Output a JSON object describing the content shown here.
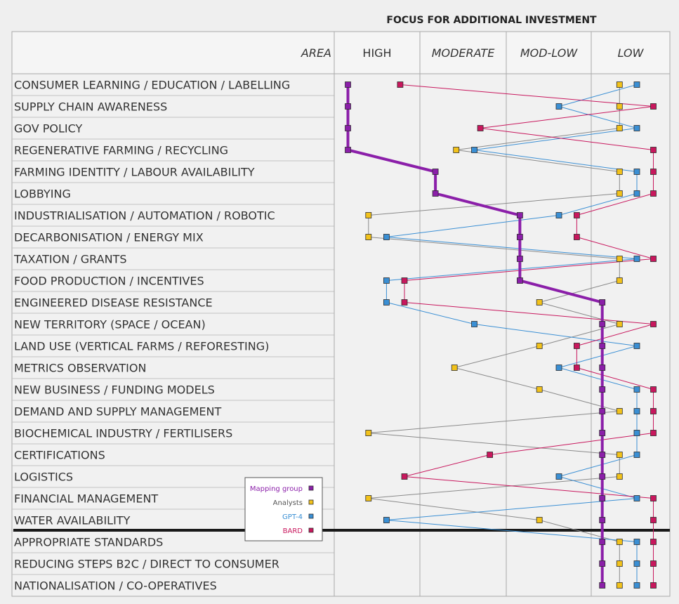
{
  "chart_data": {
    "type": "dot-plot",
    "title": "FOCUS FOR ADDITIONAL INVESTMENT",
    "area_header": "AREA",
    "x_levels": [
      "HIGH",
      "MODERATE",
      "MOD-LOW",
      "LOW"
    ],
    "x_levels_italic": [
      false,
      true,
      true,
      true
    ],
    "x_range": [
      0,
      4
    ],
    "separator_after_index": 20,
    "categories": [
      "CONSUMER LEARNING / EDUCATION / LABELLING",
      "SUPPLY CHAIN AWARENESS",
      "GOV POLICY",
      "REGENERATIVE FARMING / RECYCLING",
      "FARMING IDENTITY / LABOUR AVAILABILITY",
      "LOBBYING",
      "INDUSTRIALISATION / AUTOMATION / ROBOTIC",
      "DECARBONISATION / ENERGY MIX",
      "TAXATION / GRANTS",
      "FOOD PRODUCTION / INCENTIVES",
      "ENGINEERED DISEASE RESISTANCE",
      "NEW TERRITORY (SPACE / OCEAN)",
      "LAND USE (VERTICAL FARMS / REFORESTING)",
      "METRICS OBSERVATION",
      "NEW BUSINESS / FUNDING MODELS",
      "DEMAND AND SUPPLY MANAGEMENT",
      "BIOCHEMICAL INDUSTRY / FERTILISERS",
      "CERTIFICATIONS",
      "LOGISTICS",
      "FINANCIAL MANAGEMENT",
      "WATER AVAILABILITY",
      "APPROPRIATE STANDARDS",
      "REDUCING STEPS B2C / DIRECT TO CONSUMER",
      "NATIONALISATION / CO-OPERATIVES"
    ],
    "series": [
      {
        "name": "Mapping group",
        "color": "#8b1fa9",
        "line_emphasis": true,
        "values": [
          0.16,
          0.16,
          0.16,
          0.16,
          1.18,
          1.18,
          2.16,
          2.16,
          2.16,
          2.16,
          3.14,
          3.14,
          3.14,
          3.14,
          3.14,
          3.14,
          3.14,
          3.14,
          3.14,
          3.14,
          3.14,
          3.14,
          3.14,
          3.14
        ]
      },
      {
        "name": "Analysts",
        "color": "#f2c21b",
        "line_emphasis": false,
        "values": [
          3.36,
          3.36,
          3.36,
          1.42,
          3.36,
          3.36,
          0.4,
          0.4,
          3.36,
          3.36,
          2.39,
          3.36,
          2.39,
          1.4,
          2.39,
          3.36,
          0.4,
          3.36,
          3.36,
          0.4,
          2.39,
          3.36,
          3.36,
          3.36
        ]
      },
      {
        "name": "GPT-4",
        "color": "#3a8fd4",
        "line_emphasis": false,
        "values": [
          3.58,
          2.62,
          3.58,
          1.63,
          3.58,
          3.58,
          2.62,
          0.61,
          3.58,
          0.61,
          0.61,
          1.63,
          3.58,
          2.62,
          3.58,
          3.58,
          3.58,
          3.58,
          2.62,
          3.58,
          0.61,
          3.58,
          3.58,
          3.58
        ]
      },
      {
        "name": "BARD",
        "color": "#c8175d",
        "line_emphasis": false,
        "values": [
          0.77,
          3.79,
          1.7,
          3.79,
          3.79,
          3.79,
          2.83,
          2.83,
          3.79,
          0.82,
          0.82,
          3.79,
          2.83,
          2.83,
          3.79,
          3.79,
          3.79,
          1.81,
          0.82,
          3.79,
          3.79,
          3.79,
          3.79,
          3.79
        ]
      }
    ]
  }
}
